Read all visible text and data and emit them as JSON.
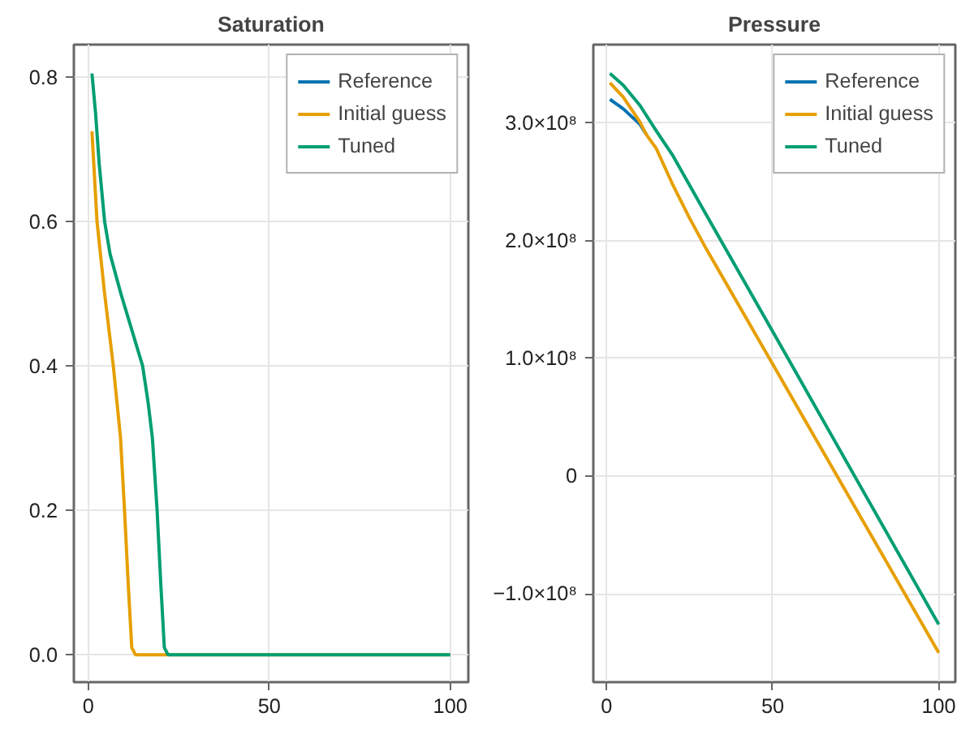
{
  "chart_data": [
    {
      "type": "line",
      "title": "Saturation",
      "xlim": [
        -4,
        105
      ],
      "ylim": [
        -0.038,
        0.845
      ],
      "xticks": [
        0,
        50,
        100
      ],
      "yticks": [
        {
          "value": 0,
          "label": "0.0"
        },
        {
          "value": 0.2,
          "label": "0.2"
        },
        {
          "value": 0.4,
          "label": "0.4"
        },
        {
          "value": 0.6,
          "label": "0.6"
        },
        {
          "value": 0.8,
          "label": "0.8"
        }
      ],
      "grid": true,
      "legend": "top right",
      "series": [
        {
          "name": "Reference",
          "color": "#0072b2"
        },
        {
          "name": "Initial guess",
          "color": "#e69f00",
          "x": [
            1,
            2.4,
            4.5,
            6.9,
            8.9,
            10,
            11,
            12,
            13,
            100
          ],
          "values": [
            0.725,
            0.6,
            0.5,
            0.4,
            0.3,
            0.2,
            0.1,
            0.01,
            0,
            0
          ]
        },
        {
          "name": "Tuned",
          "color": "#009e73",
          "x": [
            1,
            2,
            3,
            4.5,
            6,
            9,
            12,
            15,
            16.5,
            17.7,
            19,
            20,
            21,
            22,
            100
          ],
          "values": [
            0.805,
            0.75,
            0.68,
            0.6,
            0.555,
            0.5,
            0.45,
            0.4,
            0.35,
            0.3,
            0.2,
            0.1,
            0.01,
            0,
            0
          ]
        }
      ]
    },
    {
      "type": "line",
      "title": "Pressure",
      "xlim": [
        -4,
        105
      ],
      "ylim": [
        -175000000,
        366500000
      ],
      "xticks": [
        0,
        50,
        100
      ],
      "yticks": [
        {
          "value": -100000000,
          "label": "−1.0×10⁸"
        },
        {
          "value": 0,
          "label": "0"
        },
        {
          "value": 100000000,
          "label": "1.0×10⁸"
        },
        {
          "value": 200000000,
          "label": "2.0×10⁸"
        },
        {
          "value": 300000000,
          "label": "3.0×10⁸"
        }
      ],
      "grid": true,
      "legend": "top right",
      "series": [
        {
          "name": "Reference",
          "color": "#0072b2",
          "x": [
            1,
            5,
            10,
            12
          ],
          "values": [
            320000000,
            312000000,
            299000000,
            290000000
          ]
        },
        {
          "name": "Initial guess",
          "color": "#e69f00",
          "x": [
            1,
            5,
            10,
            12,
            15,
            20,
            25,
            30,
            49,
            100
          ],
          "values": [
            334000000,
            322000000,
            301000000,
            290000000,
            278000000,
            247000000,
            219000000,
            193000000,
            100000000,
            -150000000
          ]
        },
        {
          "name": "Tuned",
          "color": "#009e73",
          "x": [
            1,
            5,
            10,
            15,
            20,
            30,
            54.6,
            100
          ],
          "values": [
            342000000,
            332000000,
            315000000,
            293000000,
            272000000,
            222000000,
            100000000,
            -126000000
          ]
        }
      ]
    }
  ]
}
